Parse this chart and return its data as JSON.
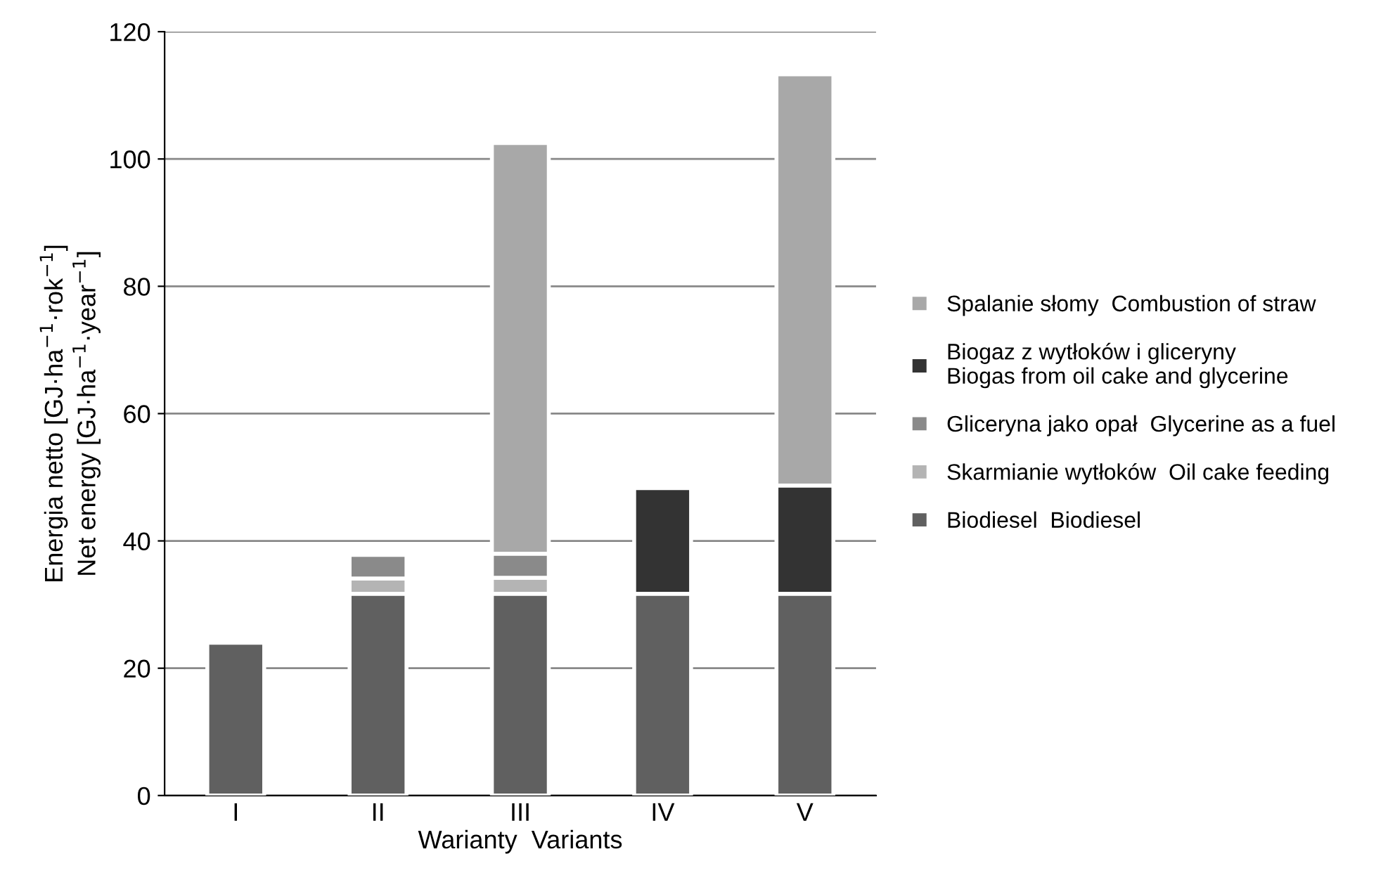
{
  "chart_data": {
    "type": "bar",
    "stacked": true,
    "xlabel": "Warianty  Variants",
    "ylabel": "Energia netto [GJ·ha$^{−1}$·rok$^{−1}$]\nNet energy [GJ·ha$^{−1}$·year$^{−1}$]",
    "categories": [
      "I",
      "II",
      "III",
      "IV",
      "V"
    ],
    "series": [
      {
        "name": "Biodiesel  Biodiesel",
        "color": "#606060",
        "values": [
          24,
          31.7,
          31.7,
          31.7,
          31.7
        ]
      },
      {
        "name": "Skarmianie wytłoków  Oil cake feeding",
        "color": "#b4b4b4",
        "values": [
          null,
          2.4,
          2.5,
          null,
          null
        ]
      },
      {
        "name": "Gliceryna jako opał  Glycerine as a fuel",
        "color": "#8a8a8a",
        "values": [
          null,
          3.7,
          3.8,
          null,
          null
        ]
      },
      {
        "name": "Biogaz z wytłoków i gliceryny\nBiogas from oil cake and glycerine",
        "color": "#333333",
        "values": [
          null,
          null,
          null,
          16.6,
          17.0
        ]
      },
      {
        "name": "Spalanie słomy  Combustion of straw",
        "color": "#a8a8a8",
        "values": [
          null,
          null,
          64.5,
          null,
          64.6
        ]
      }
    ],
    "ylim": [
      0,
      120
    ],
    "yticks": [
      0,
      20,
      40,
      60,
      80,
      100,
      120
    ],
    "grid": "y",
    "legend": "right"
  }
}
